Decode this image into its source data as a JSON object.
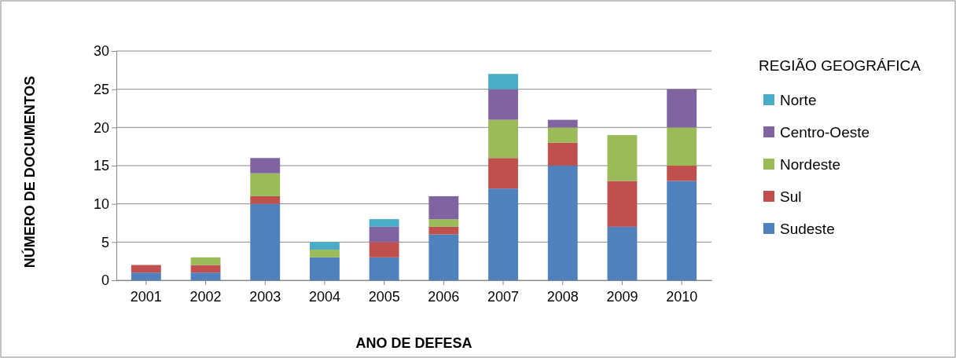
{
  "chart_data": {
    "type": "bar",
    "stacked": true,
    "xlabel": "ANO DE DEFESA",
    "ylabel": "NÚMERO DE DOCUMENTOS",
    "legend_title": "REGIÃO GEOGRÁFICA",
    "legend": "right",
    "grid": "y",
    "categories": [
      "2001",
      "2002",
      "2003",
      "2004",
      "2005",
      "2006",
      "2007",
      "2008",
      "2009",
      "2010"
    ],
    "ylim": [
      0,
      30
    ],
    "yticks": [
      0,
      5,
      10,
      15,
      20,
      25,
      30
    ],
    "series": [
      {
        "name": "Sudeste",
        "color": "#4f81bd",
        "values": [
          1,
          1,
          10,
          3,
          3,
          6,
          12,
          15,
          7,
          13
        ]
      },
      {
        "name": "Sul",
        "color": "#c0504d",
        "values": [
          1,
          1,
          1,
          0,
          2,
          1,
          4,
          3,
          6,
          2
        ]
      },
      {
        "name": "Nordeste",
        "color": "#9bbb59",
        "values": [
          0,
          1,
          3,
          1,
          0,
          1,
          5,
          2,
          6,
          5
        ]
      },
      {
        "name": "Centro-Oeste",
        "color": "#8064a2",
        "values": [
          0,
          0,
          2,
          0,
          2,
          3,
          4,
          1,
          0,
          5
        ]
      },
      {
        "name": "Norte",
        "color": "#4bacc6",
        "values": [
          0,
          0,
          0,
          1,
          1,
          0,
          2,
          0,
          0,
          0
        ]
      }
    ]
  }
}
